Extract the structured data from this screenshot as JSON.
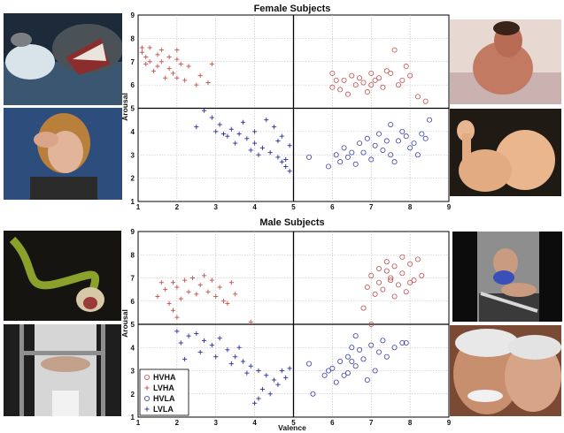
{
  "colors": {
    "HVHA": "#c0504d",
    "LVHA": "#c0504d",
    "HVLA": "#3b3fa8",
    "LVLA": "#2a2f9a",
    "grid": "#b8b8b8",
    "divider": "#000000"
  },
  "photos": [
    {
      "name": "shark-attack-photo"
    },
    {
      "name": "distressed-woman-photo"
    },
    {
      "name": "snake-photo"
    },
    {
      "name": "prisoner-bars-photo"
    },
    {
      "name": "man-in-bath-photo"
    },
    {
      "name": "baby-photo"
    },
    {
      "name": "woman-in-lingerie-photo"
    },
    {
      "name": "elderly-couple-photo"
    }
  ],
  "chart_data": [
    {
      "type": "scatter",
      "title": "Female Subjects",
      "xlabel": "",
      "ylabel": "Arousal",
      "xlim": [
        1,
        9
      ],
      "ylim": [
        1,
        9
      ],
      "x_ticks": [
        "1",
        "2",
        "3",
        "4",
        "5",
        "6",
        "7",
        "8",
        "9"
      ],
      "y_ticks": [
        "1",
        "2",
        "3",
        "4",
        "5",
        "6",
        "7",
        "8",
        "9"
      ],
      "grid": true,
      "divider": {
        "x": 5,
        "y": 5
      },
      "series": [
        {
          "name": "HVHA",
          "marker": "circle",
          "points": [
            [
              6.0,
              6.5
            ],
            [
              6.3,
              6.2
            ],
            [
              6.5,
              6.4
            ],
            [
              6.8,
              6.1
            ],
            [
              7.0,
              6.0
            ],
            [
              7.2,
              6.3
            ],
            [
              7.5,
              6.5
            ],
            [
              7.3,
              5.9
            ],
            [
              6.9,
              5.7
            ],
            [
              6.6,
              6.0
            ],
            [
              7.6,
              7.5
            ],
            [
              7.9,
              6.8
            ],
            [
              8.0,
              6.4
            ],
            [
              7.4,
              6.6
            ],
            [
              6.2,
              5.8
            ],
            [
              6.4,
              5.6
            ],
            [
              7.1,
              6.2
            ],
            [
              7.7,
              6.0
            ],
            [
              8.2,
              5.5
            ],
            [
              8.4,
              5.3
            ],
            [
              6.1,
              6.2
            ],
            [
              6.7,
              6.3
            ],
            [
              7.0,
              6.5
            ],
            [
              6.0,
              5.9
            ],
            [
              7.8,
              6.2
            ]
          ]
        },
        {
          "name": "LVHA",
          "marker": "plus",
          "points": [
            [
              1.1,
              7.4
            ],
            [
              1.3,
              7.6
            ],
            [
              1.5,
              7.3
            ],
            [
              1.6,
              7.0
            ],
            [
              1.8,
              7.2
            ],
            [
              2.0,
              7.1
            ],
            [
              2.1,
              6.9
            ],
            [
              1.4,
              6.6
            ],
            [
              1.7,
              6.3
            ],
            [
              1.9,
              6.5
            ],
            [
              2.2,
              6.2
            ],
            [
              2.5,
              6.0
            ],
            [
              1.2,
              7.2
            ],
            [
              1.6,
              7.5
            ],
            [
              2.0,
              7.5
            ],
            [
              1.3,
              7.0
            ],
            [
              2.9,
              6.9
            ],
            [
              1.8,
              6.7
            ],
            [
              2.3,
              6.8
            ],
            [
              2.6,
              6.4
            ],
            [
              1.5,
              6.8
            ],
            [
              2.0,
              6.3
            ],
            [
              2.8,
              6.1
            ],
            [
              1.1,
              7.6
            ],
            [
              1.2,
              6.9
            ]
          ]
        },
        {
          "name": "HVLA",
          "marker": "circle",
          "points": [
            [
              5.9,
              2.5
            ],
            [
              6.1,
              3.0
            ],
            [
              6.3,
              3.3
            ],
            [
              6.5,
              3.1
            ],
            [
              6.7,
              3.5
            ],
            [
              6.9,
              3.7
            ],
            [
              7.1,
              3.4
            ],
            [
              7.3,
              3.2
            ],
            [
              7.5,
              3.0
            ],
            [
              7.7,
              3.6
            ],
            [
              7.9,
              3.8
            ],
            [
              8.1,
              3.5
            ],
            [
              8.3,
              3.9
            ],
            [
              8.5,
              4.5
            ],
            [
              8.2,
              3.0
            ],
            [
              7.0,
              2.8
            ],
            [
              6.6,
              2.6
            ],
            [
              6.4,
              2.9
            ],
            [
              7.6,
              2.7
            ],
            [
              7.2,
              3.9
            ],
            [
              6.8,
              3.1
            ],
            [
              7.4,
              3.6
            ],
            [
              8.0,
              3.3
            ],
            [
              6.2,
              2.7
            ],
            [
              7.8,
              4.0
            ],
            [
              5.4,
              2.9
            ],
            [
              7.5,
              4.3
            ],
            [
              8.4,
              3.7
            ]
          ]
        },
        {
          "name": "LVLA",
          "marker": "plus",
          "points": [
            [
              2.7,
              4.9
            ],
            [
              2.9,
              4.6
            ],
            [
              3.1,
              4.3
            ],
            [
              3.4,
              4.1
            ],
            [
              3.6,
              3.9
            ],
            [
              3.8,
              3.7
            ],
            [
              4.0,
              3.5
            ],
            [
              4.2,
              3.3
            ],
            [
              4.4,
              3.1
            ],
            [
              4.6,
              2.9
            ],
            [
              4.7,
              2.7
            ],
            [
              4.8,
              2.5
            ],
            [
              4.9,
              2.3
            ],
            [
              3.0,
              4.0
            ],
            [
              3.3,
              3.8
            ],
            [
              3.5,
              3.5
            ],
            [
              3.9,
              3.2
            ],
            [
              4.1,
              3.0
            ],
            [
              4.3,
              4.5
            ],
            [
              4.5,
              4.2
            ],
            [
              4.7,
              3.8
            ],
            [
              4.9,
              3.4
            ],
            [
              2.5,
              4.2
            ],
            [
              3.7,
              4.4
            ],
            [
              4.6,
              3.6
            ],
            [
              4.8,
              2.8
            ],
            [
              4.0,
              4.0
            ],
            [
              3.2,
              3.9
            ]
          ]
        }
      ]
    },
    {
      "type": "scatter",
      "title": "Male Subjects",
      "xlabel": "Valence",
      "ylabel": "Arousal",
      "xlim": [
        1,
        9
      ],
      "ylim": [
        1,
        9
      ],
      "x_ticks": [
        "1",
        "2",
        "3",
        "4",
        "5",
        "6",
        "7",
        "8",
        "9"
      ],
      "y_ticks": [
        "1",
        "2",
        "3",
        "4",
        "5",
        "6",
        "7",
        "8",
        "9"
      ],
      "grid": true,
      "divider": {
        "x": 5,
        "y": 5
      },
      "legend": {
        "position": "bottom-left",
        "labels": [
          "HVHA",
          "LVHA",
          "HVLA",
          "LVLA"
        ]
      },
      "series": [
        {
          "name": "HVHA",
          "marker": "circle",
          "points": [
            [
              7.0,
              7.1
            ],
            [
              7.2,
              6.8
            ],
            [
              7.4,
              7.3
            ],
            [
              7.5,
              6.9
            ],
            [
              7.6,
              7.5
            ],
            [
              7.8,
              7.2
            ],
            [
              8.0,
              7.6
            ],
            [
              8.2,
              7.8
            ],
            [
              7.3,
              6.5
            ],
            [
              7.1,
              6.3
            ],
            [
              7.7,
              6.7
            ],
            [
              8.1,
              6.9
            ],
            [
              7.9,
              6.4
            ],
            [
              7.5,
              7.0
            ],
            [
              7.2,
              7.4
            ],
            [
              6.9,
              6.6
            ],
            [
              8.3,
              7.1
            ],
            [
              7.0,
              5.0
            ],
            [
              6.8,
              5.7
            ],
            [
              7.6,
              6.2
            ],
            [
              7.4,
              7.7
            ],
            [
              8.0,
              6.8
            ],
            [
              7.8,
              7.9
            ]
          ]
        },
        {
          "name": "LVHA",
          "marker": "plus",
          "points": [
            [
              1.5,
              6.2
            ],
            [
              1.7,
              6.5
            ],
            [
              1.9,
              6.8
            ],
            [
              2.0,
              6.6
            ],
            [
              2.2,
              6.9
            ],
            [
              2.4,
              7.0
            ],
            [
              2.6,
              6.7
            ],
            [
              2.8,
              6.4
            ],
            [
              3.0,
              6.2
            ],
            [
              3.2,
              6.0
            ],
            [
              3.4,
              6.8
            ],
            [
              1.8,
              5.9
            ],
            [
              2.1,
              6.1
            ],
            [
              2.5,
              6.3
            ],
            [
              2.7,
              7.1
            ],
            [
              3.1,
              6.6
            ],
            [
              3.3,
              5.9
            ],
            [
              1.6,
              6.8
            ],
            [
              2.3,
              6.4
            ],
            [
              1.9,
              5.6
            ],
            [
              3.5,
              6.3
            ],
            [
              3.9,
              5.1
            ],
            [
              2.0,
              5.3
            ],
            [
              2.9,
              6.9
            ]
          ]
        },
        {
          "name": "HVLA",
          "marker": "circle",
          "points": [
            [
              5.4,
              3.3
            ],
            [
              5.5,
              2.0
            ],
            [
              5.8,
              2.8
            ],
            [
              6.0,
              3.1
            ],
            [
              6.2,
              3.4
            ],
            [
              6.4,
              3.6
            ],
            [
              6.5,
              4.0
            ],
            [
              6.6,
              3.2
            ],
            [
              6.7,
              3.9
            ],
            [
              6.8,
              3.5
            ],
            [
              7.0,
              4.1
            ],
            [
              7.2,
              3.8
            ],
            [
              7.4,
              3.6
            ],
            [
              7.6,
              4.0
            ],
            [
              7.8,
              4.2
            ],
            [
              6.3,
              2.8
            ],
            [
              6.9,
              2.6
            ],
            [
              7.1,
              3.0
            ],
            [
              6.1,
              2.5
            ],
            [
              6.6,
              4.5
            ],
            [
              5.9,
              3.0
            ],
            [
              7.3,
              4.3
            ],
            [
              6.4,
              2.9
            ],
            [
              7.9,
              4.2
            ],
            [
              6.5,
              3.4
            ]
          ]
        },
        {
          "name": "LVLA",
          "marker": "plus",
          "points": [
            [
              2.0,
              4.7
            ],
            [
              2.3,
              4.5
            ],
            [
              2.5,
              4.6
            ],
            [
              2.7,
              4.3
            ],
            [
              2.9,
              4.1
            ],
            [
              3.1,
              4.4
            ],
            [
              3.3,
              3.9
            ],
            [
              3.5,
              3.6
            ],
            [
              3.7,
              3.4
            ],
            [
              3.9,
              3.2
            ],
            [
              4.1,
              3.0
            ],
            [
              4.3,
              2.8
            ],
            [
              4.5,
              2.6
            ],
            [
              4.7,
              3.0
            ],
            [
              4.9,
              3.1
            ],
            [
              2.1,
              4.2
            ],
            [
              2.6,
              3.8
            ],
            [
              3.0,
              3.6
            ],
            [
              3.4,
              3.3
            ],
            [
              3.8,
              2.9
            ],
            [
              4.2,
              2.2
            ],
            [
              4.6,
              2.4
            ],
            [
              4.8,
              2.7
            ],
            [
              4.0,
              1.6
            ],
            [
              4.4,
              2.0
            ],
            [
              2.2,
              3.5
            ],
            [
              3.6,
              4.0
            ],
            [
              4.1,
              1.8
            ]
          ]
        }
      ]
    }
  ]
}
